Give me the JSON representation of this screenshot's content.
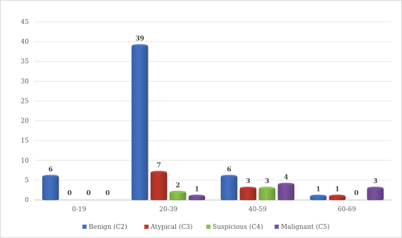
{
  "chart_data": {
    "type": "bar",
    "categories": [
      "0-19",
      "20-39",
      "40-59",
      "60-69"
    ],
    "series": [
      {
        "name": "Benign (C2)",
        "color": "#4472c4",
        "values": [
          6,
          39,
          6,
          1
        ]
      },
      {
        "name": "Atypical (C3)",
        "color": "#c0392b",
        "values": [
          0,
          7,
          3,
          1
        ]
      },
      {
        "name": "Suspicious (C4)",
        "color": "#8bc34a",
        "values": [
          0,
          2,
          3,
          0
        ]
      },
      {
        "name": "Malignant (C5)",
        "color": "#7b52a3",
        "values": [
          0,
          1,
          4,
          3
        ]
      }
    ],
    "yticks": [
      "0",
      "5",
      "10",
      "15",
      "20",
      "25",
      "30",
      "35",
      "40",
      "45"
    ],
    "ylim": [
      0,
      45
    ],
    "grid": true,
    "legend_position": "bottom"
  }
}
